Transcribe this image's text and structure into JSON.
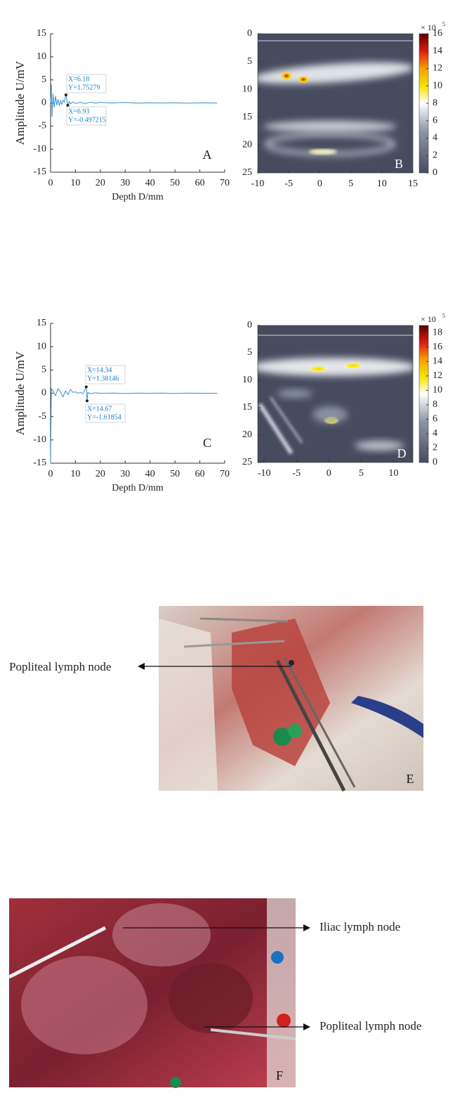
{
  "chart_data": [
    {
      "type": "line",
      "panel": "A",
      "ylabel": "Amplitude U/mV",
      "xlabel": "Depth D/mm",
      "xlim": [
        0,
        70
      ],
      "ylim": [
        -15,
        15
      ],
      "xticks": [
        0,
        10,
        20,
        30,
        40,
        50,
        60,
        70
      ],
      "yticks": [
        -15,
        -10,
        -5,
        0,
        5,
        10,
        15
      ],
      "color": "#3a8fd0",
      "x": [
        0,
        0.3,
        0.6,
        1,
        1.5,
        2,
        2.5,
        3,
        3.5,
        4,
        4.5,
        5,
        5.5,
        6.18,
        6.93,
        7.5,
        8,
        9,
        10,
        12,
        14,
        16,
        18,
        20,
        25,
        30,
        35,
        40,
        45,
        50,
        55,
        60,
        65,
        67
      ],
      "values": [
        0,
        4,
        -3,
        2,
        -1,
        1.5,
        -0.5,
        0.8,
        -0.6,
        0.5,
        -0.3,
        0.6,
        0.2,
        1.75279,
        -0.497215,
        0.3,
        -0.2,
        0.2,
        -0.1,
        0.1,
        -0.1,
        0.15,
        -0.05,
        0.1,
        0,
        0.1,
        -0.05,
        0.05,
        0,
        0.05,
        -0.05,
        0.05,
        0,
        0
      ],
      "datatips": [
        {
          "x": 6.18,
          "y": 1.75279,
          "label_x": "X=6.18",
          "label_y": "Y=1.75279"
        },
        {
          "x": 6.93,
          "y": -0.497215,
          "label_x": "X=6.93",
          "label_y": "Y=-0.497215"
        }
      ]
    },
    {
      "type": "heatmap",
      "panel": "B",
      "xlim": [
        -10,
        15
      ],
      "ylim": [
        0,
        25
      ],
      "xticks": [
        -10,
        -5,
        0,
        5,
        10,
        15
      ],
      "yticks": [
        0,
        5,
        10,
        15,
        20,
        25
      ],
      "zlim": [
        0,
        16
      ],
      "zticks": [
        0,
        2,
        4,
        6,
        8,
        10,
        12,
        14,
        16
      ],
      "colorbar_multiplier": "× 10",
      "colorbar_exponent": "5"
    },
    {
      "type": "line",
      "panel": "C",
      "ylabel": "Amplitude U/mV",
      "xlabel": "Depth D/mm",
      "xlim": [
        0,
        70
      ],
      "ylim": [
        -15,
        15
      ],
      "xticks": [
        0,
        10,
        20,
        30,
        40,
        50,
        60,
        70
      ],
      "yticks": [
        -15,
        -10,
        -5,
        0,
        5,
        10,
        15
      ],
      "color": "#3a8fd0",
      "x": [
        0,
        0.3,
        1,
        2,
        3,
        4,
        5,
        6,
        7,
        8,
        9,
        10,
        11,
        12,
        13,
        14.34,
        14.67,
        15,
        16,
        18,
        20,
        25,
        30,
        35,
        40,
        45,
        50,
        55,
        60,
        65,
        67
      ],
      "values": [
        -15,
        1,
        0.5,
        -0.5,
        1,
        0.3,
        -0.8,
        0.5,
        -0.3,
        0.8,
        0.2,
        0.3,
        0,
        0.2,
        -0.1,
        1.38146,
        -1.61854,
        0.2,
        -0.1,
        0.1,
        0,
        0.05,
        -0.05,
        0.05,
        0,
        0.05,
        -0.05,
        0.05,
        0,
        0,
        0
      ],
      "datatips": [
        {
          "x": 14.34,
          "y": 1.38146,
          "label_x": "X=14.34",
          "label_y": "Y=1.38146"
        },
        {
          "x": 14.67,
          "y": -1.61854,
          "label_x": "X=14.67",
          "label_y": "Y=-1.61854"
        }
      ]
    },
    {
      "type": "heatmap",
      "panel": "D",
      "xlim": [
        -11,
        13
      ],
      "ylim": [
        0,
        25
      ],
      "xticks": [
        -10,
        -5,
        0,
        5,
        10
      ],
      "yticks": [
        0,
        5,
        10,
        15,
        20,
        25
      ],
      "zlim": [
        0,
        19
      ],
      "zticks": [
        0,
        2,
        4,
        6,
        8,
        10,
        12,
        14,
        16,
        18
      ],
      "colorbar_multiplier": "× 10",
      "colorbar_exponent": "5"
    }
  ],
  "photos": [
    {
      "panel": "E",
      "labels": [
        "Popliteal lymph node"
      ]
    },
    {
      "panel": "F",
      "labels": [
        "Iliac lymph node",
        "Popliteal lymph node"
      ]
    }
  ]
}
